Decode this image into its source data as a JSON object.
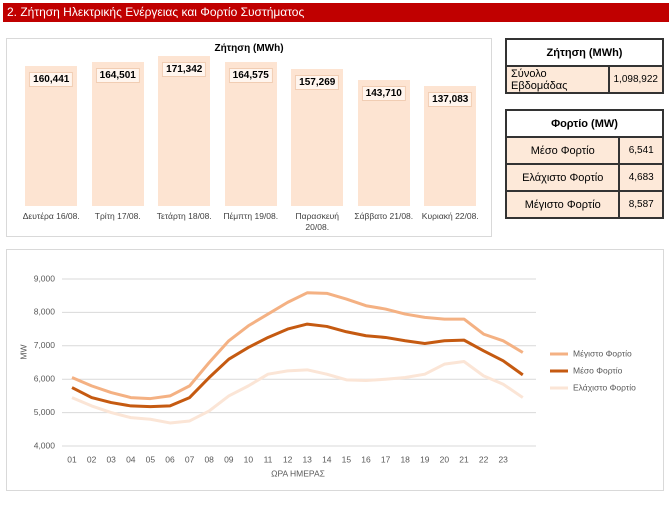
{
  "header": {
    "title": "2. Ζήτηση Ηλεκτρικής Ενέργειας και Φορτίο Συστήματος"
  },
  "chart_data": [
    {
      "type": "bar",
      "title": "Ζήτηση (MWh)",
      "categories": [
        "Δευτέρα 16/08.",
        "Τρίτη 17/08.",
        "Τετάρτη 18/08.",
        "Πέμπτη 19/08.",
        "Παρασκευή 20/08.",
        "Σάββατο 21/08.",
        "Κυριακή 22/08."
      ],
      "values": [
        160441,
        164501,
        171342,
        164575,
        157269,
        143710,
        137083
      ],
      "value_labels": [
        "160,441",
        "164,501",
        "171,342",
        "164,575",
        "157,269",
        "143,710",
        "137,083"
      ],
      "color": "#fde4d2",
      "ylim": [
        0,
        190000
      ]
    },
    {
      "type": "line",
      "x_label": "ΩΡΑ ΗΜΕΡΑΣ",
      "y_label": "MW",
      "categories": [
        "01",
        "02",
        "03",
        "04",
        "05",
        "06",
        "07",
        "08",
        "09",
        "10",
        "11",
        "12",
        "13",
        "14",
        "15",
        "16",
        "17",
        "18",
        "19",
        "20",
        "21",
        "22",
        "23",
        null
      ],
      "series": [
        {
          "name": "Μέγιστο Φορτίο",
          "color": "#f4b183",
          "values": [
            6050,
            5800,
            5600,
            5450,
            5420,
            5500,
            5800,
            6500,
            7150,
            7600,
            7950,
            8300,
            8587,
            8570,
            8400,
            8200,
            8100,
            7950,
            7850,
            7800,
            7800,
            7350,
            7150,
            6800
          ]
        },
        {
          "name": "Μέσο Φορτίο",
          "color": "#c55a11",
          "values": [
            5750,
            5450,
            5300,
            5200,
            5180,
            5200,
            5450,
            6050,
            6600,
            6950,
            7250,
            7500,
            7650,
            7580,
            7420,
            7300,
            7250,
            7150,
            7070,
            7150,
            7170,
            6850,
            6550,
            6130
          ]
        },
        {
          "name": "Ελάχιστο Φορτίο",
          "color": "#fbe5d6",
          "values": [
            5450,
            5200,
            5000,
            4850,
            4800,
            4690,
            4750,
            5050,
            5500,
            5800,
            6150,
            6250,
            6280,
            6150,
            5980,
            5960,
            6000,
            6050,
            6150,
            6450,
            6530,
            6100,
            5850,
            5450
          ]
        }
      ],
      "ylim": [
        4000,
        9000
      ],
      "yticks": [
        {
          "value": 4000,
          "label": "4,000"
        },
        {
          "value": 5000,
          "label": "5,000"
        },
        {
          "value": 6000,
          "label": "6,000"
        },
        {
          "value": 7000,
          "label": "7,000"
        },
        {
          "value": 8000,
          "label": "8,000"
        },
        {
          "value": 9000,
          "label": "9,000"
        }
      ],
      "grid": true,
      "legend": "right"
    }
  ],
  "demand_table": {
    "header": "Ζήτηση (MWh)",
    "rows": [
      [
        "Σύνολο Εβδομάδας",
        "1,098,922"
      ]
    ]
  },
  "load_table": {
    "header": "Φορτίο (MW)",
    "rows": [
      [
        "Μέσο Φορτίο",
        "6,541"
      ],
      [
        "Ελάχιστο Φορτίο",
        "4,683"
      ],
      [
        "Μέγιστο Φορτίο",
        "8,587"
      ]
    ]
  }
}
